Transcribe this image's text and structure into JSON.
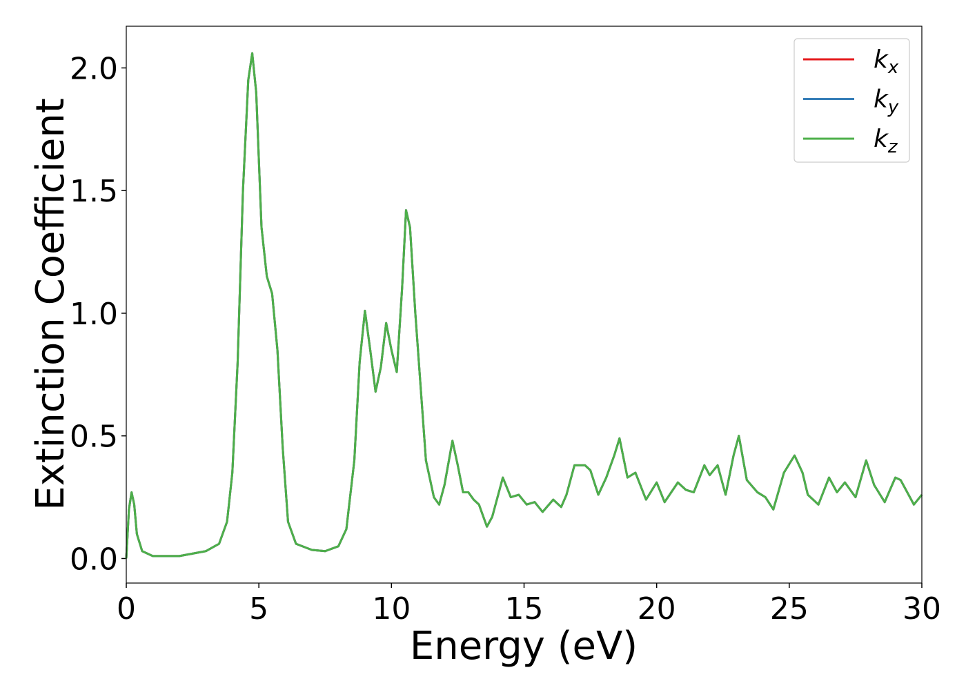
{
  "chart_data": {
    "type": "line",
    "x_label": "Energy (eV)",
    "y_label": "Extinction Coefficient",
    "xlim": [
      0,
      30
    ],
    "ylim": [
      -0.1,
      2.17
    ],
    "xticks": [
      0,
      5,
      10,
      15,
      20,
      25,
      30
    ],
    "yticks": [
      {
        "value": 0,
        "label": "0.0"
      },
      0.5,
      {
        "value": 1,
        "label": "1.0"
      },
      1.5,
      {
        "value": 2,
        "label": "2.0"
      }
    ],
    "legend": "upper right",
    "x": [
      0,
      0.1,
      0.2,
      0.3,
      0.4,
      0.6,
      1,
      2,
      3,
      3.5,
      3.8,
      4.0,
      4.2,
      4.4,
      4.6,
      4.75,
      4.9,
      5.1,
      5.3,
      5.5,
      5.7,
      5.9,
      6.1,
      6.4,
      7,
      7.5,
      8,
      8.3,
      8.6,
      8.8,
      9.0,
      9.2,
      9.4,
      9.6,
      9.8,
      10.0,
      10.2,
      10.4,
      10.55,
      10.7,
      10.9,
      11.1,
      11.3,
      11.6,
      11.8,
      12.0,
      12.3,
      12.5,
      12.7,
      12.9,
      13.1,
      13.3,
      13.6,
      13.8,
      14.2,
      14.5,
      14.8,
      15.1,
      15.4,
      15.7,
      16.1,
      16.4,
      16.6,
      16.9,
      17.3,
      17.5,
      17.8,
      18.1,
      18.4,
      18.6,
      18.9,
      19.2,
      19.6,
      20.0,
      20.3,
      20.8,
      21.1,
      21.4,
      21.8,
      22.0,
      22.3,
      22.6,
      22.9,
      23.1,
      23.4,
      23.8,
      24.1,
      24.4,
      24.8,
      25.2,
      25.5,
      25.7,
      26.1,
      26.5,
      26.8,
      27.1,
      27.5,
      27.9,
      28.2,
      28.6,
      29.0,
      29.2,
      29.7,
      30
    ],
    "series": [
      {
        "name": "kx",
        "color": "#e41a1c",
        "values": [
          0.0,
          0.2,
          0.27,
          0.22,
          0.1,
          0.03,
          0.01,
          0.01,
          0.03,
          0.06,
          0.15,
          0.35,
          0.8,
          1.5,
          1.95,
          2.06,
          1.9,
          1.35,
          1.15,
          1.08,
          0.85,
          0.45,
          0.15,
          0.06,
          0.035,
          0.03,
          0.05,
          0.12,
          0.4,
          0.8,
          1.01,
          0.85,
          0.68,
          0.78,
          0.96,
          0.85,
          0.76,
          1.1,
          1.42,
          1.35,
          1.0,
          0.7,
          0.4,
          0.25,
          0.22,
          0.3,
          0.48,
          0.38,
          0.27,
          0.27,
          0.24,
          0.22,
          0.13,
          0.17,
          0.33,
          0.25,
          0.26,
          0.22,
          0.23,
          0.19,
          0.24,
          0.21,
          0.26,
          0.38,
          0.38,
          0.36,
          0.26,
          0.33,
          0.42,
          0.49,
          0.33,
          0.35,
          0.24,
          0.31,
          0.23,
          0.31,
          0.28,
          0.27,
          0.38,
          0.34,
          0.38,
          0.26,
          0.42,
          0.5,
          0.32,
          0.27,
          0.25,
          0.2,
          0.35,
          0.42,
          0.35,
          0.26,
          0.22,
          0.33,
          0.27,
          0.31,
          0.25,
          0.4,
          0.3,
          0.23,
          0.33,
          0.32,
          0.22,
          0.26
        ]
      },
      {
        "name": "ky",
        "color": "#377eb8",
        "values": [
          0.0,
          0.2,
          0.27,
          0.22,
          0.1,
          0.03,
          0.01,
          0.01,
          0.03,
          0.06,
          0.15,
          0.35,
          0.8,
          1.5,
          1.95,
          2.06,
          1.9,
          1.35,
          1.15,
          1.08,
          0.85,
          0.45,
          0.15,
          0.06,
          0.035,
          0.03,
          0.05,
          0.12,
          0.4,
          0.8,
          1.01,
          0.85,
          0.68,
          0.78,
          0.96,
          0.85,
          0.76,
          1.1,
          1.42,
          1.35,
          1.0,
          0.7,
          0.4,
          0.25,
          0.22,
          0.3,
          0.48,
          0.38,
          0.27,
          0.27,
          0.24,
          0.22,
          0.13,
          0.17,
          0.33,
          0.25,
          0.26,
          0.22,
          0.23,
          0.19,
          0.24,
          0.21,
          0.26,
          0.38,
          0.38,
          0.36,
          0.26,
          0.33,
          0.42,
          0.49,
          0.33,
          0.35,
          0.24,
          0.31,
          0.23,
          0.31,
          0.28,
          0.27,
          0.38,
          0.34,
          0.38,
          0.26,
          0.42,
          0.5,
          0.32,
          0.27,
          0.25,
          0.2,
          0.35,
          0.42,
          0.35,
          0.26,
          0.22,
          0.33,
          0.27,
          0.31,
          0.25,
          0.4,
          0.3,
          0.23,
          0.33,
          0.32,
          0.22,
          0.26
        ]
      },
      {
        "name": "kz",
        "color": "#4daf4a",
        "values": [
          0.0,
          0.2,
          0.27,
          0.22,
          0.1,
          0.03,
          0.01,
          0.01,
          0.03,
          0.06,
          0.15,
          0.35,
          0.8,
          1.5,
          1.95,
          2.06,
          1.9,
          1.35,
          1.15,
          1.08,
          0.85,
          0.45,
          0.15,
          0.06,
          0.035,
          0.03,
          0.05,
          0.12,
          0.4,
          0.8,
          1.01,
          0.85,
          0.68,
          0.78,
          0.96,
          0.85,
          0.76,
          1.1,
          1.42,
          1.35,
          1.0,
          0.7,
          0.4,
          0.25,
          0.22,
          0.3,
          0.48,
          0.38,
          0.27,
          0.27,
          0.24,
          0.22,
          0.13,
          0.17,
          0.33,
          0.25,
          0.26,
          0.22,
          0.23,
          0.19,
          0.24,
          0.21,
          0.26,
          0.38,
          0.38,
          0.36,
          0.26,
          0.33,
          0.42,
          0.49,
          0.33,
          0.35,
          0.24,
          0.31,
          0.23,
          0.31,
          0.28,
          0.27,
          0.38,
          0.34,
          0.38,
          0.26,
          0.42,
          0.5,
          0.32,
          0.27,
          0.25,
          0.2,
          0.35,
          0.42,
          0.35,
          0.26,
          0.22,
          0.33,
          0.27,
          0.31,
          0.25,
          0.4,
          0.3,
          0.23,
          0.33,
          0.32,
          0.22,
          0.26
        ]
      }
    ]
  }
}
